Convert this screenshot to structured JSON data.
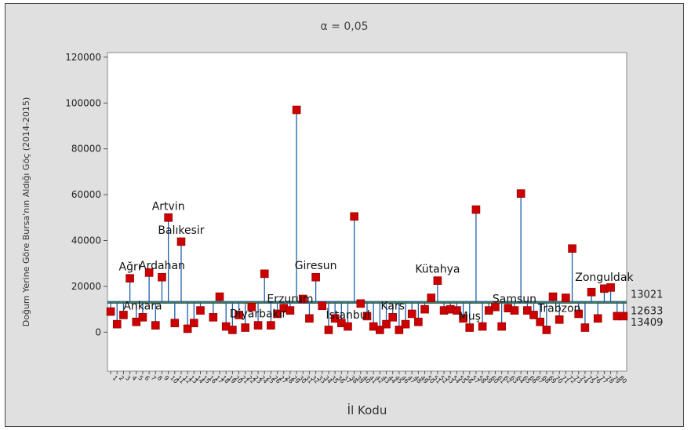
{
  "chart_data": {
    "type": "scatter",
    "subtitle": "α = 0,05",
    "xlabel": "İl Kodu",
    "ylabel": "Doğum Yerine Göre Bursa'nın Aldığı Göç (2014-2015)",
    "ylim": [
      -17000,
      122000
    ],
    "yticks": [
      0,
      20000,
      40000,
      60000,
      80000,
      100000,
      120000
    ],
    "xlim": [
      0.5,
      81.5
    ],
    "x": [
      1,
      2,
      3,
      4,
      5,
      6,
      7,
      8,
      9,
      10,
      11,
      12,
      13,
      14,
      15,
      17,
      18,
      19,
      20,
      21,
      22,
      23,
      24,
      25,
      26,
      27,
      28,
      29,
      30,
      31,
      32,
      33,
      34,
      35,
      36,
      37,
      38,
      39,
      40,
      41,
      42,
      43,
      44,
      45,
      46,
      47,
      48,
      49,
      50,
      51,
      52,
      53,
      54,
      55,
      56,
      57,
      58,
      59,
      60,
      61,
      62,
      63,
      64,
      65,
      66,
      67,
      68,
      69,
      70,
      71,
      72,
      73,
      74,
      75,
      76,
      77,
      78,
      79,
      80,
      81
    ],
    "values": [
      9000,
      3500,
      7500,
      23500,
      4500,
      6500,
      26000,
      3000,
      24000,
      50000,
      4000,
      39500,
      1500,
      4000,
      9500,
      6500,
      15500,
      2500,
      1000,
      7500,
      2000,
      11000,
      3000,
      25500,
      3000,
      8000,
      10500,
      9500,
      97000,
      14500,
      6000,
      24000,
      11500,
      1000,
      6000,
      4000,
      2500,
      50500,
      12500,
      7000,
      2500,
      1000,
      3500,
      6500,
      1000,
      3500,
      8000,
      4500,
      10000,
      15000,
      22500,
      9500,
      10000,
      9500,
      6000,
      2000,
      53500,
      2500,
      9500,
      11000,
      2500,
      10500,
      9500,
      60500,
      9500,
      7500,
      4500,
      1000,
      15500,
      5500,
      15000,
      36500,
      8000,
      2000,
      17500,
      6000,
      19000,
      19500,
      7000,
      7000
    ],
    "point_labels": [
      {
        "x": 4,
        "text": "Ağrı"
      },
      {
        "x": 6,
        "text": "Ankara"
      },
      {
        "x": 10,
        "text": "Artvin"
      },
      {
        "x": 9,
        "text": "Ardahan"
      },
      {
        "x": 12,
        "text": "Balıkesir"
      },
      {
        "x": 24,
        "text": "Diyarbakır"
      },
      {
        "x": 29,
        "text": "Erzurum"
      },
      {
        "x": 33,
        "text": "Giresun"
      },
      {
        "x": 38,
        "text": "İstanbul"
      },
      {
        "x": 45,
        "text": "Kars"
      },
      {
        "x": 52,
        "text": "Kütahya"
      },
      {
        "x": 57,
        "text": "Muş"
      },
      {
        "x": 64,
        "text": "Samsun"
      },
      {
        "x": 71,
        "text": "Trabzon"
      },
      {
        "x": 78,
        "text": "Zonguldak"
      }
    ],
    "reference_lines": [
      {
        "value": 13021,
        "label": "13021",
        "color": "#5a7a1a"
      },
      {
        "value": 12633,
        "label": "12633",
        "color": "#1f5fa8"
      },
      {
        "value": 13409,
        "label": "13409",
        "color": "#1f5fa8"
      }
    ],
    "tick_labels": [
      "1",
      "2",
      "3",
      "4",
      "5",
      "6",
      "7",
      "8",
      "9",
      "10",
      "11",
      "12",
      "13",
      "14",
      "15",
      "16",
      "17",
      "18",
      "19",
      "20",
      "21",
      "22",
      "23",
      "24",
      "25",
      "26",
      "27",
      "28",
      "29",
      "30",
      "31",
      "32",
      "33",
      "34",
      "35",
      "36",
      "37",
      "38",
      "39",
      "40",
      "41",
      "42",
      "43",
      "44",
      "45",
      "46",
      "47",
      "48",
      "49",
      "50",
      "51",
      "52",
      "53",
      "54",
      "55",
      "56",
      "57",
      "58",
      "59",
      "60",
      "61",
      "62",
      "63",
      "64",
      "65",
      "66",
      "67",
      "68",
      "69",
      "70",
      "71",
      "72",
      "73",
      "74",
      "75",
      "76",
      "77",
      "78",
      "79",
      "80"
    ],
    "colors": {
      "marker": "#cc0000",
      "stem": "#1f5fa8",
      "center": "#5a7a1a",
      "background": "#e0e0e0",
      "plot": "#ffffff"
    },
    "grid": false
  }
}
